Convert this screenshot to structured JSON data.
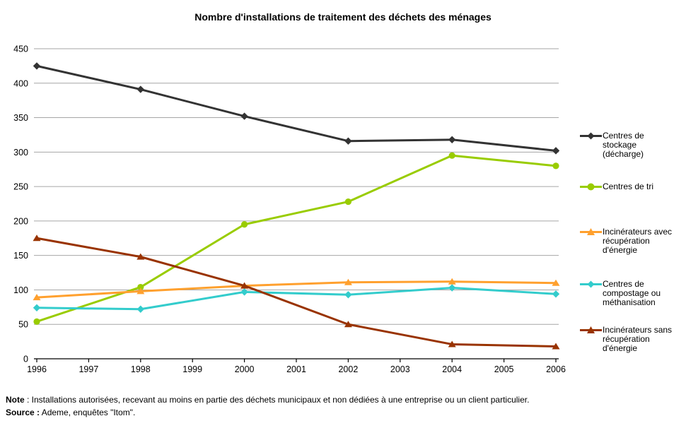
{
  "title": "Nombre d'installations de traitement des déchets des ménages",
  "chart_data": {
    "type": "line",
    "x": [
      1996,
      1998,
      2000,
      2002,
      2004,
      2006
    ],
    "x_axis_ticks": [
      "1996",
      "1997",
      "1998",
      "1999",
      "2000",
      "2001",
      "2002",
      "2003",
      "2004",
      "2005",
      "2006"
    ],
    "xlim": [
      1996,
      2006
    ],
    "ylim": [
      0,
      450
    ],
    "y_ticks": [
      0,
      50,
      100,
      150,
      200,
      250,
      300,
      350,
      400,
      450
    ],
    "grid": "horizontal",
    "gridline_color": "#a6a6a6",
    "axis_color": "#000000",
    "legend_position": "right",
    "series": [
      {
        "id": "centres-de-stockage",
        "name": "Centres de stockage (décharge)",
        "color": "#333333",
        "marker": "diamond",
        "values": [
          425,
          391,
          352,
          316,
          318,
          302
        ]
      },
      {
        "id": "centres-de-tri",
        "name": "Centres de tri",
        "color": "#99cc00",
        "marker": "circle",
        "values": [
          54,
          104,
          195,
          228,
          295,
          280
        ]
      },
      {
        "id": "incinerateurs-avec-recuperation",
        "name": "Incinérateurs avec récupération d'énergie",
        "color": "#ffa02e",
        "marker": "triangle",
        "values": [
          89,
          98,
          106,
          111,
          112,
          110
        ]
      },
      {
        "id": "centres-de-compostage",
        "name": "Centres de compostage ou méthanisation",
        "color": "#33cccc",
        "marker": "diamond",
        "values": [
          74,
          72,
          97,
          93,
          103,
          94
        ]
      },
      {
        "id": "incinerateurs-sans-recuperation",
        "name": "Incinérateurs sans récupération d'énergie",
        "color": "#993300",
        "marker": "triangle",
        "values": [
          175,
          148,
          106,
          50,
          21,
          18
        ]
      }
    ]
  },
  "note": {
    "note_label": "Note",
    "note_rest": " : Installations autorisées, recevant au moins en partie des déchets municipaux et non dédiées à une entreprise ou un client particulier.",
    "source_label": "Source :",
    "source_rest": " Ademe, enquêtes \"Itom\"."
  }
}
